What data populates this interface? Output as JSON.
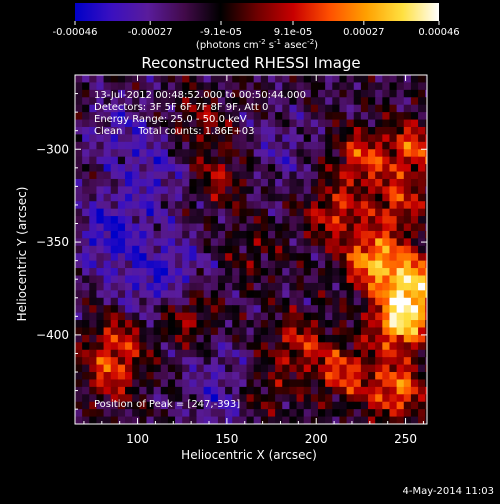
{
  "colorbar": {
    "tick_labels": [
      "-0.00046",
      "-0.00027",
      "-9.1e-05",
      "9.1e-05",
      "0.00027",
      "0.00046"
    ],
    "tick_values": [
      -0.00046,
      -0.00027,
      -9.1e-05,
      9.1e-05,
      0.00027,
      0.00046
    ],
    "range": [
      -0.00046,
      0.00046
    ],
    "units_text": "(photons cm",
    "units_exp1": "-2",
    "units_mid": " s",
    "units_exp2": "-1",
    "units_end": " asec",
    "units_exp3": "-2",
    "units_close": ")",
    "colors": [
      "#0000c8",
      "#3a10c0",
      "#5a1c9c",
      "#420a4a",
      "#000000",
      "#6e0000",
      "#c80000",
      "#ff5000",
      "#ffa000",
      "#ffe040",
      "#ffffff"
    ]
  },
  "chart_data": {
    "type": "heatmap",
    "title": "Reconstructed RHESSI Image",
    "xlabel": "Heliocentric X (arcsec)",
    "ylabel": "Heliocentric Y (arcsec)",
    "xlim": [
      65,
      262
    ],
    "ylim": [
      -448,
      -260
    ],
    "x_ticks": [
      100,
      150,
      200,
      250
    ],
    "y_ticks": [
      -300,
      -350,
      -400
    ],
    "x_tick_labels": [
      "100",
      "150",
      "200",
      "250"
    ],
    "y_tick_labels": [
      "−300",
      "−350",
      "−400"
    ],
    "info_lines": [
      "13-Jul-2012 00:48:52.000 to 00:50:44.000",
      "Detectors: 3F 5F 6F 7F 8F 9F, Att 0",
      "Energy Range: 25.0 - 50.0 keV",
      "Clean     Total counts: 1.86E+03"
    ],
    "peak_label": "Position of Peak = [247,-393]",
    "peak": [
      247,
      -393
    ],
    "hot_regions": [
      {
        "x": 247,
        "y": -393,
        "value": 1.0
      },
      {
        "x": 255,
        "y": -372,
        "value": 0.9
      },
      {
        "x": 232,
        "y": -360,
        "value": 0.85
      },
      {
        "x": 255,
        "y": -300,
        "value": 0.6
      },
      {
        "x": 225,
        "y": -305,
        "value": 0.55
      },
      {
        "x": 210,
        "y": -335,
        "value": 0.5
      },
      {
        "x": 245,
        "y": -330,
        "value": 0.5
      },
      {
        "x": 245,
        "y": -430,
        "value": 0.7
      },
      {
        "x": 215,
        "y": -420,
        "value": 0.55
      },
      {
        "x": 190,
        "y": -405,
        "value": 0.45
      },
      {
        "x": 85,
        "y": -420,
        "value": 0.5
      },
      {
        "x": 90,
        "y": -400,
        "value": 0.45
      },
      {
        "x": 128,
        "y": -390,
        "value": 0.4
      },
      {
        "x": 145,
        "y": -315,
        "value": 0.35
      },
      {
        "x": 135,
        "y": -285,
        "value": 0.3
      },
      {
        "x": 165,
        "y": -355,
        "value": 0.2
      },
      {
        "x": 170,
        "y": -432,
        "value": 0.3
      }
    ],
    "cold_regions": [
      {
        "x": 85,
        "y": -345,
        "value": -0.75
      },
      {
        "x": 110,
        "y": -315,
        "value": -0.5
      },
      {
        "x": 90,
        "y": -290,
        "value": -0.45
      },
      {
        "x": 120,
        "y": -365,
        "value": -0.55
      },
      {
        "x": 100,
        "y": -380,
        "value": -0.4
      },
      {
        "x": 150,
        "y": -440,
        "value": -0.35
      },
      {
        "x": 180,
        "y": -300,
        "value": -0.35
      },
      {
        "x": 145,
        "y": -420,
        "value": -0.3
      }
    ]
  },
  "footer": {
    "timestamp": "4-May-2014 11:03"
  }
}
